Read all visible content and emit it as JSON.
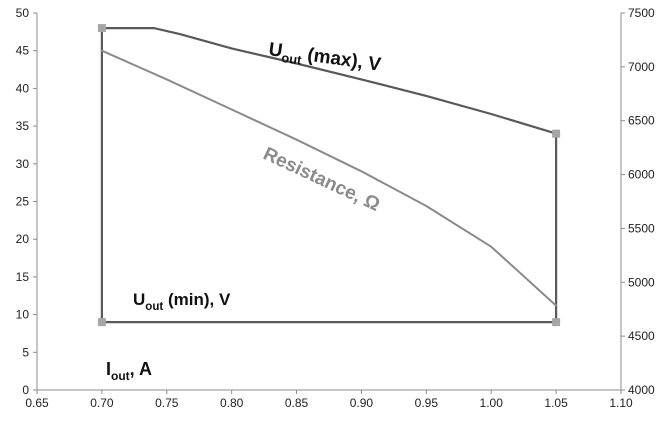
{
  "chart_data": {
    "type": "line",
    "x_axis": {
      "range": [
        0.65,
        1.1
      ],
      "ticks": [
        "0.65",
        "0.70",
        "0.75",
        "0.80",
        "0.85",
        "0.90",
        "0.95",
        "1.00",
        "1.05",
        "1.10"
      ],
      "label_main": "I",
      "label_sub": "out",
      "label_rest": ", A"
    },
    "y_axis_left": {
      "range": [
        0,
        50
      ],
      "ticks": [
        "0",
        "5",
        "10",
        "15",
        "20",
        "25",
        "30",
        "35",
        "40",
        "45",
        "50"
      ]
    },
    "y_axis_right": {
      "range": [
        4000,
        7500
      ],
      "ticks": [
        "4000",
        "4500",
        "5000",
        "5500",
        "6000",
        "6500",
        "7000",
        "7500"
      ]
    },
    "grid": false,
    "series": [
      {
        "key": "umax",
        "axis": "left",
        "color": "#595959",
        "label_main": "U",
        "label_sub": "out",
        "label_rest": " (max), V",
        "points": [
          [
            0.7,
            48
          ],
          [
            0.74,
            48
          ],
          [
            0.76,
            47.2
          ],
          [
            0.8,
            45.3
          ],
          [
            0.85,
            43.3
          ],
          [
            0.9,
            41.2
          ],
          [
            0.95,
            39.0
          ],
          [
            1.0,
            36.6
          ],
          [
            1.05,
            34
          ]
        ]
      },
      {
        "key": "umin",
        "axis": "left",
        "color": "#595959",
        "label_main": "U",
        "label_sub": "out",
        "label_rest": " (min), V",
        "points": [
          [
            0.7,
            9
          ],
          [
            1.05,
            9
          ]
        ]
      },
      {
        "key": "edges",
        "axis": "left",
        "color": "#595959",
        "segments": [
          [
            [
              0.7,
              9
            ],
            [
              0.7,
              48
            ]
          ],
          [
            [
              1.05,
              9
            ],
            [
              1.05,
              34
            ]
          ]
        ]
      },
      {
        "key": "resistance",
        "axis": "left",
        "color": "#8a8a8a",
        "label_main": "Resistance, Ω",
        "points": [
          [
            0.7,
            45
          ],
          [
            0.75,
            41.2
          ],
          [
            0.8,
            37.2
          ],
          [
            0.85,
            33.2
          ],
          [
            0.9,
            29.0
          ],
          [
            0.95,
            24.4
          ],
          [
            1.0,
            19.0
          ],
          [
            1.05,
            11.2
          ]
        ]
      }
    ],
    "markers": [
      [
        0.7,
        48
      ],
      [
        0.7,
        9
      ],
      [
        1.05,
        34
      ],
      [
        1.05,
        9
      ]
    ],
    "marker_color": "#a6a6a6"
  }
}
